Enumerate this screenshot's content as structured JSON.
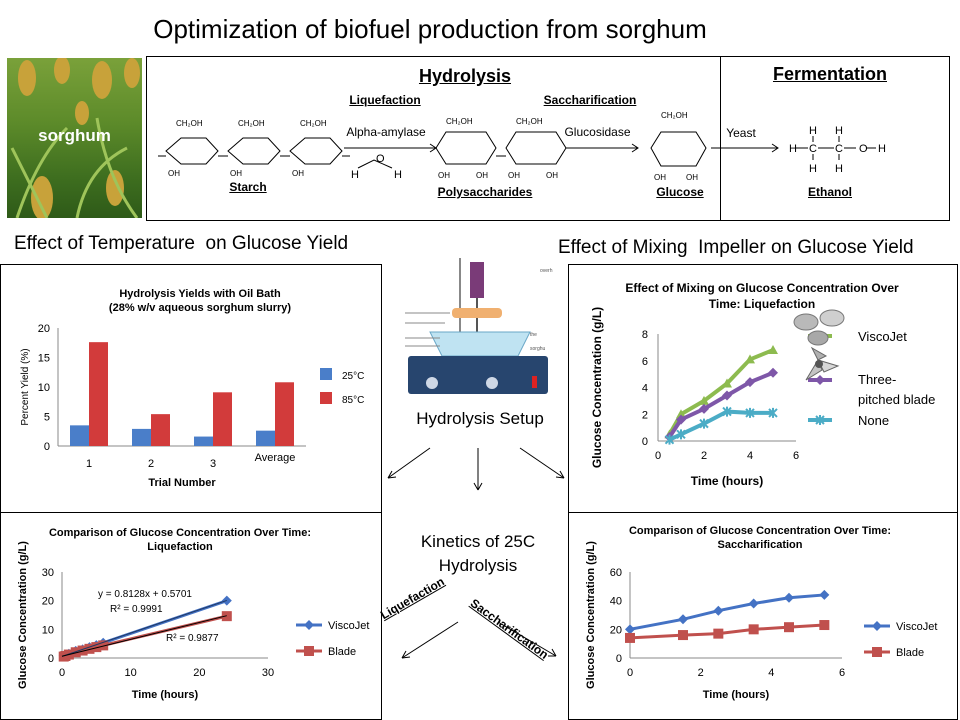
{
  "page": {
    "title": "Optimization of biofuel production from sorghum",
    "sorghum_label": "sorghum"
  },
  "reaction": {
    "hydrolysis_header": "Hydrolysis",
    "fermentation_header": "Fermentation",
    "liquefaction_label": "Liquefaction",
    "saccharification_label": "Saccharification",
    "enzyme_alpha": "Alpha-amylase",
    "enzyme_glucosidase": "Glucosidase",
    "enzyme_yeast": "Yeast",
    "starch_label": "Starch",
    "polysaccharides_label": "Polysaccharides",
    "glucose_label": "Glucose",
    "ethanol_label": "Ethanol"
  },
  "sections": {
    "temperature": "Effect of Temperature  on Glucose Yield",
    "mixing": "Effect of Mixing  Impeller on Glucose Yield",
    "setup": "Hydrolysis Setup",
    "kinetics": "Kinetics of 25C Hydrolysis",
    "liquefaction_arrow": "Liquefaction",
    "saccharification_arrow": "Saccharification"
  },
  "chart_data": [
    {
      "id": "temperature",
      "type": "bar",
      "title": "Hydrolysis Yields with Oil Bath",
      "subtitle": "(28% w/v aqueous sorghum slurry)",
      "xlabel": "Trial Number",
      "ylabel": "Percent Yield (%)",
      "ylim": [
        0,
        20
      ],
      "yticks": [
        0,
        5,
        10,
        15,
        20
      ],
      "categories": [
        "1",
        "2",
        "3",
        "Average"
      ],
      "series": [
        {
          "name": "25°C",
          "color": "#4A7EC9",
          "values": [
            3.5,
            2.9,
            1.6,
            2.6
          ]
        },
        {
          "name": "85°C",
          "color": "#D23B3B",
          "values": [
            17.6,
            5.4,
            9.1,
            10.8
          ]
        }
      ],
      "legend": "right"
    },
    {
      "id": "mixing",
      "type": "line",
      "title": "Effect of Mixing on Glucose Concentration Over Time: Liquefaction",
      "xlabel": "Time (hours)",
      "ylabel": "Glucose Concentration (g/L)",
      "xlim": [
        0,
        6
      ],
      "ylim": [
        0,
        8
      ],
      "xticks": [
        0,
        2,
        4,
        6
      ],
      "yticks": [
        0,
        2,
        4,
        6,
        8
      ],
      "series": [
        {
          "name": "ViscoJet",
          "color": "#8DBB4F",
          "x": [
            0.5,
            1.0,
            2.0,
            3.0,
            4.0,
            5.0
          ],
          "y": [
            0.5,
            2.0,
            3.0,
            4.3,
            6.1,
            6.8
          ]
        },
        {
          "name": "Three-pitched blade",
          "color": "#7E57A8",
          "x": [
            0.5,
            1.0,
            2.0,
            3.0,
            4.0,
            5.0
          ],
          "y": [
            0.3,
            1.6,
            2.4,
            3.4,
            4.4,
            5.1
          ]
        },
        {
          "name": "None",
          "color": "#4BACC6",
          "x": [
            0.5,
            1.0,
            2.0,
            3.0,
            4.0,
            5.0
          ],
          "y": [
            0.1,
            0.5,
            1.3,
            2.2,
            2.1,
            2.1
          ]
        }
      ],
      "legend": "right"
    },
    {
      "id": "kinetics-liquefaction",
      "type": "line",
      "title": "Comparison of Glucose Concentration Over Time:",
      "subtitle": "Liquefaction",
      "xlabel": "Time (hours)",
      "ylabel": "Glucose Concentration (g/L)",
      "xlim": [
        0,
        30
      ],
      "ylim": [
        0,
        30
      ],
      "xticks": [
        0,
        10,
        20,
        30
      ],
      "yticks": [
        0,
        10,
        20,
        30
      ],
      "series": [
        {
          "name": "ViscoJet",
          "color": "#4472C4",
          "x": [
            0.25,
            0.5,
            1,
            2,
            3,
            4,
            5,
            6,
            24
          ],
          "y": [
            0.8,
            1.0,
            1.5,
            2.5,
            3.0,
            3.8,
            4.5,
            5.3,
            20.0
          ]
        },
        {
          "name": "Blade",
          "color": "#C0504D",
          "x": [
            0.25,
            0.5,
            1,
            2,
            3,
            4,
            5,
            6,
            24
          ],
          "y": [
            0.5,
            0.7,
            1.2,
            2.0,
            2.6,
            3.2,
            3.8,
            4.4,
            14.6
          ]
        }
      ],
      "annotations": [
        "y = 0.8128x + 0.5701",
        "R² = 0.9991",
        "R² = 0.9877"
      ],
      "trendlines": [
        {
          "color": "#1F3864",
          "slope": 0.8128,
          "intercept": 0.5701
        },
        {
          "color": "#000000",
          "slope": 0.59,
          "intercept": 0.6
        }
      ],
      "legend": "right"
    },
    {
      "id": "kinetics-saccharification",
      "type": "line",
      "title": "Comparison of Glucose Concentration Over Time:",
      "subtitle": "Saccharification",
      "xlabel": "Time (hours)",
      "ylabel": "Glucose Concentration (g/L)",
      "xlim": [
        0,
        6
      ],
      "ylim": [
        0,
        60
      ],
      "xticks": [
        0,
        2,
        4,
        6
      ],
      "yticks": [
        0,
        20,
        40,
        60
      ],
      "series": [
        {
          "name": "ViscoJet",
          "color": "#4472C4",
          "x": [
            0,
            1.5,
            2.5,
            3.5,
            4.5,
            5.5
          ],
          "y": [
            20,
            27,
            33,
            38,
            42,
            44
          ]
        },
        {
          "name": "Blade",
          "color": "#C0504D",
          "x": [
            0,
            1.5,
            2.5,
            3.5,
            4.5,
            5.5
          ],
          "y": [
            14,
            16,
            17,
            20,
            21.5,
            23
          ]
        }
      ],
      "legend": "right"
    }
  ]
}
